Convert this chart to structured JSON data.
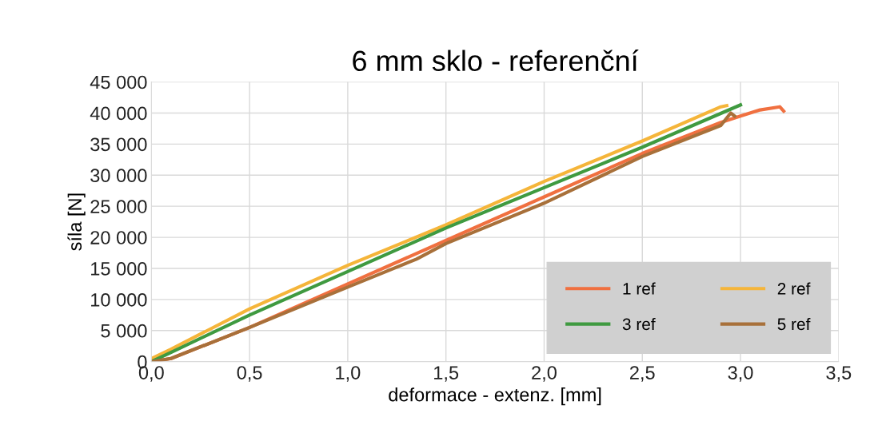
{
  "chart_data": {
    "type": "line",
    "title": "6 mm sklo - referenční",
    "xlabel": "deformace - extenz. [mm]",
    "ylabel": "síla [N]",
    "xlim": [
      0,
      3.5
    ],
    "xticks": [
      {
        "value": 0,
        "label": "0,0"
      },
      {
        "value": 0.5,
        "label": "0,5"
      },
      {
        "value": 1,
        "label": "1,0"
      },
      {
        "value": 1.5,
        "label": "1,5"
      },
      {
        "value": 2,
        "label": "2,0"
      },
      {
        "value": 2.5,
        "label": "2,5"
      },
      {
        "value": 3,
        "label": "3,0"
      },
      {
        "value": 3.5,
        "label": "3,5"
      }
    ],
    "ylim": [
      0,
      45000
    ],
    "yticks": [
      0,
      {
        "value": 5000,
        "label": "5 000"
      },
      {
        "value": 10000,
        "label": "10 000"
      },
      {
        "value": 15000,
        "label": "15 000"
      },
      {
        "value": 20000,
        "label": "20 000"
      },
      {
        "value": 25000,
        "label": "25 000"
      },
      {
        "value": 30000,
        "label": "30 000"
      },
      {
        "value": 35000,
        "label": "35 000"
      },
      {
        "value": 40000,
        "label": "40 000"
      },
      {
        "value": 45000,
        "label": "45 000"
      }
    ],
    "grid": true,
    "legend": "bottom right",
    "marker": "none",
    "line_style": "solid",
    "series": [
      {
        "name": "1 ref",
        "color": "#f07040",
        "x": [
          0,
          0.1,
          0.5,
          1.0,
          1.5,
          2.0,
          2.5,
          2.9,
          3.0,
          3.1,
          3.2,
          3.22
        ],
        "values": [
          0,
          500,
          5500,
          12500,
          19500,
          26500,
          33500,
          38500,
          39500,
          40500,
          41000,
          40300
        ]
      },
      {
        "name": "2 ref",
        "color": "#f5b53a",
        "x": [
          0,
          0.1,
          0.5,
          1.0,
          1.5,
          2.0,
          2.5,
          2.9,
          2.93
        ],
        "values": [
          500,
          2000,
          8500,
          15500,
          22000,
          29000,
          35500,
          41000,
          41200
        ]
      },
      {
        "name": "3 ref",
        "color": "#3f9a40",
        "x": [
          0,
          0.1,
          0.5,
          1.0,
          1.5,
          2.0,
          2.5,
          3.0
        ],
        "values": [
          0,
          1500,
          7500,
          14500,
          21500,
          28000,
          34500,
          41300
        ]
      },
      {
        "name": "5 ref",
        "color": "#a8703a",
        "x": [
          0,
          0.1,
          0.5,
          1.0,
          1.35,
          1.5,
          2.0,
          2.5,
          2.9,
          2.95,
          2.97
        ],
        "values": [
          0,
          500,
          5500,
          12000,
          16500,
          19000,
          25500,
          33000,
          38000,
          40000,
          39500
        ]
      }
    ]
  }
}
